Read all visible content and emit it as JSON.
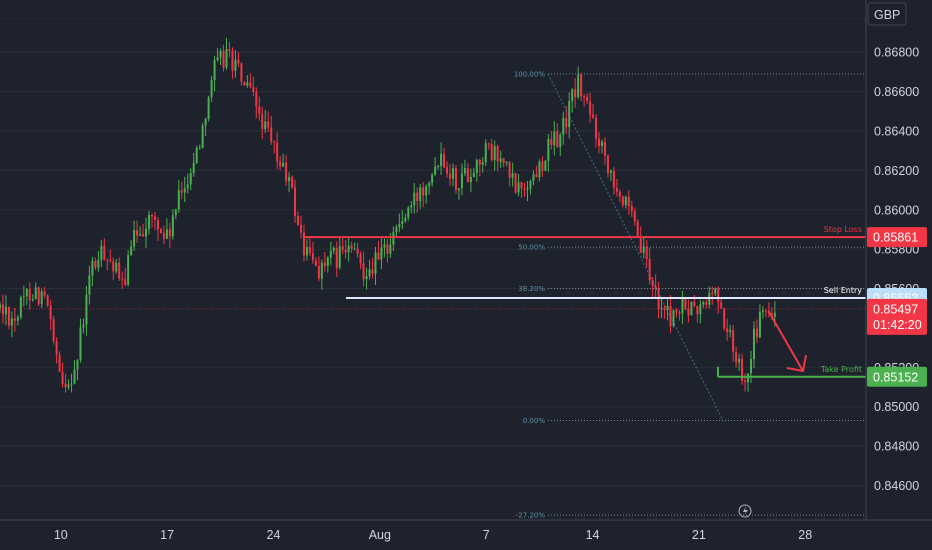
{
  "chart_data": {
    "type": "candlestick",
    "currency": "GBP",
    "y_axis": {
      "min": 0.8445,
      "max": 0.8705,
      "ticks": [
        "0.86800",
        "0.86600",
        "0.86400",
        "0.86200",
        "0.86000",
        "0.85800",
        "0.85600",
        "0.85200",
        "0.85000",
        "0.84800",
        "0.84600"
      ]
    },
    "x_axis": {
      "first_day": "Jul 6",
      "last_day": "Sep 1",
      "labels": [
        {
          "day": 10,
          "text": "10"
        },
        {
          "day": 17,
          "text": "17"
        },
        {
          "day": 24,
          "text": "24"
        },
        {
          "day": 31,
          "text": "Aug"
        },
        {
          "day": 38,
          "text": "7"
        },
        {
          "day": 45,
          "text": "14"
        },
        {
          "day": 52,
          "text": "21"
        },
        {
          "day": 59,
          "text": "28"
        }
      ]
    },
    "price_path": [
      [
        6,
        0.855
      ],
      [
        7,
        0.8545
      ],
      [
        8,
        0.856
      ],
      [
        9,
        0.8555
      ],
      [
        10,
        0.851
      ],
      [
        11,
        0.852
      ],
      [
        12,
        0.857
      ],
      [
        13,
        0.858
      ],
      [
        14,
        0.856
      ],
      [
        15,
        0.859
      ],
      [
        16,
        0.8595
      ],
      [
        17,
        0.8585
      ],
      [
        18,
        0.861
      ],
      [
        19,
        0.863
      ],
      [
        20,
        0.867
      ],
      [
        21,
        0.868
      ],
      [
        22,
        0.8665
      ],
      [
        23,
        0.865
      ],
      [
        24,
        0.863
      ],
      [
        25,
        0.8615
      ],
      [
        26,
        0.858
      ],
      [
        27,
        0.857
      ],
      [
        28,
        0.8575
      ],
      [
        29,
        0.858
      ],
      [
        30,
        0.857
      ],
      [
        31,
        0.8575
      ],
      [
        32,
        0.859
      ],
      [
        33,
        0.86
      ],
      [
        34,
        0.8615
      ],
      [
        35,
        0.863
      ],
      [
        36,
        0.8615
      ],
      [
        37,
        0.862
      ],
      [
        38,
        0.863
      ],
      [
        39,
        0.8625
      ],
      [
        40,
        0.861
      ],
      [
        41,
        0.8615
      ],
      [
        42,
        0.863
      ],
      [
        43,
        0.864
      ],
      [
        44,
        0.8665
      ],
      [
        45,
        0.8645
      ],
      [
        46,
        0.8625
      ],
      [
        47,
        0.8605
      ],
      [
        48,
        0.8585
      ],
      [
        49,
        0.856
      ],
      [
        50,
        0.8545
      ],
      [
        51,
        0.855
      ],
      [
        52,
        0.8548
      ],
      [
        53,
        0.856
      ],
      [
        54,
        0.8535
      ],
      [
        55,
        0.8515
      ],
      [
        56,
        0.8545
      ],
      [
        57,
        0.8548
      ]
    ],
    "levels": {
      "stop_loss": {
        "label": "Stop Loss",
        "price": 0.85861,
        "tag": "0.85861",
        "color": "#f23645"
      },
      "sell_entry": {
        "label": "Sell Entry",
        "price": 0.85552,
        "tag": "0.85552",
        "color": "#ffffff"
      },
      "take_profit": {
        "label": "Take Profit",
        "price": 0.85152,
        "tag": "0.85152",
        "color": "#4caf50"
      },
      "current": {
        "price": 0.85497,
        "tag": "0.85497",
        "countdown": "01:42:20",
        "color": "#f23645"
      }
    },
    "fibonacci": [
      {
        "label": "100.00%",
        "price": 0.8669
      },
      {
        "label": "50.00%",
        "price": 0.8581
      },
      {
        "label": "38.20%",
        "price": 0.856
      },
      {
        "label": "0.00%",
        "price": 0.8493
      },
      {
        "label": "-27.20%",
        "price": 0.8445
      }
    ],
    "colors": {
      "up": "#4caf50",
      "down": "#f23645",
      "background": "#1e222d",
      "grid": "#2a2e39"
    }
  }
}
